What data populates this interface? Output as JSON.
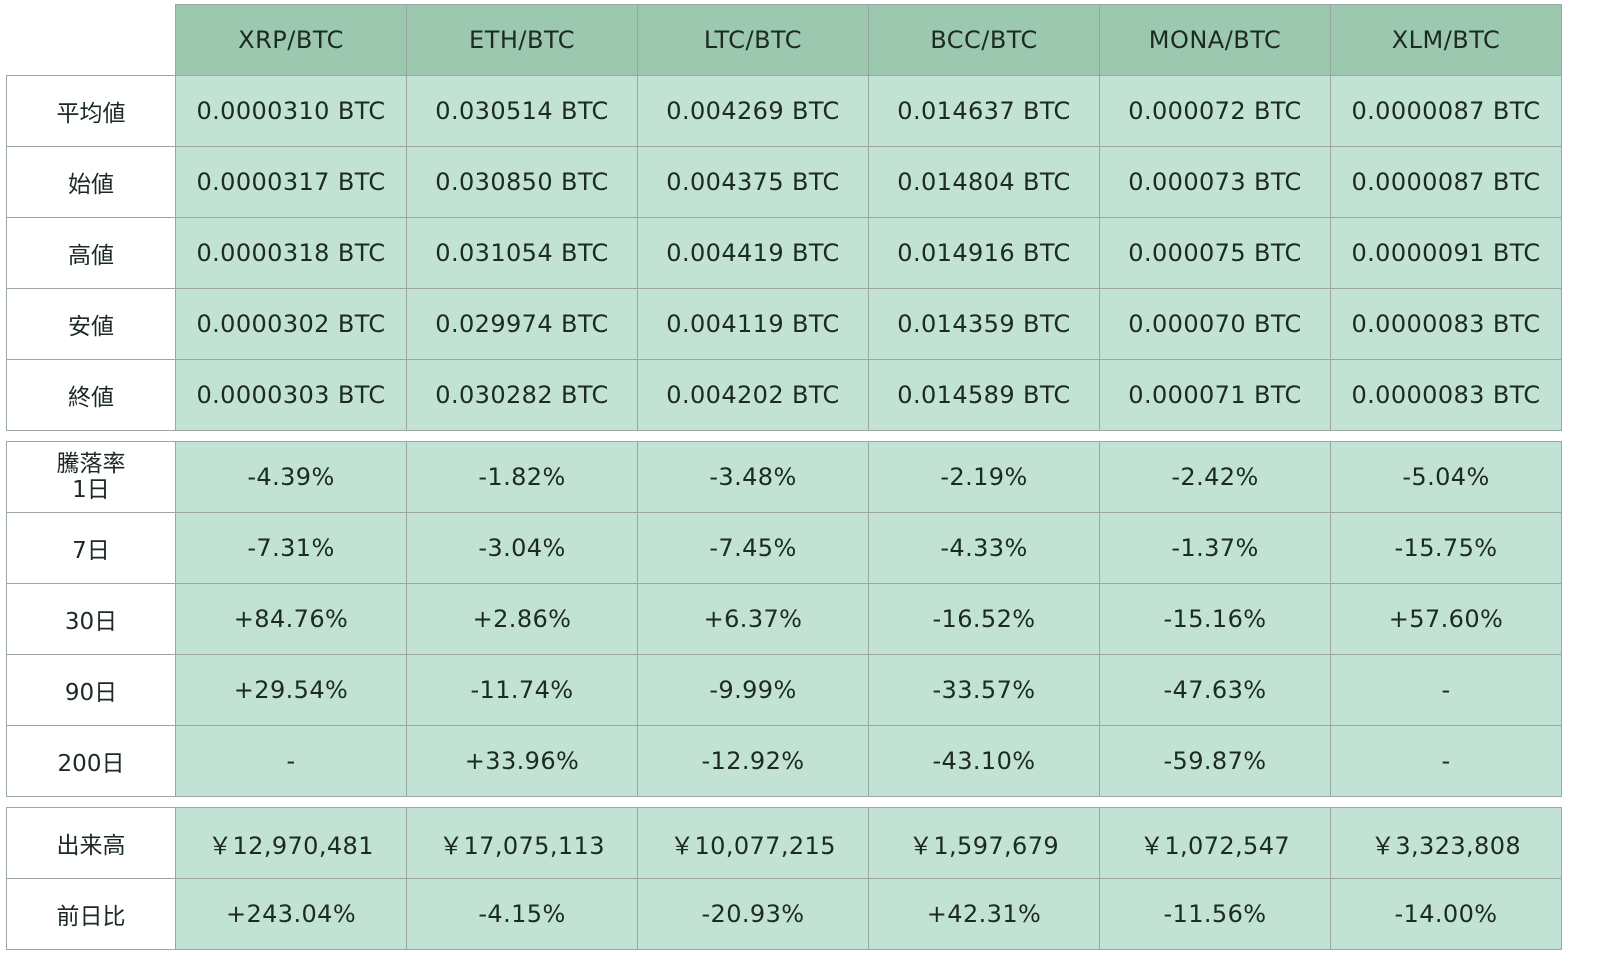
{
  "columns": [
    "XRP/BTC",
    "ETH/BTC",
    "LTC/BTC",
    "BCC/BTC",
    "MONA/BTC",
    "XLM/BTC"
  ],
  "ohlc": {
    "rows": [
      {
        "label": "平均値",
        "values": [
          "0.0000310 BTC",
          "0.030514 BTC",
          "0.004269 BTC",
          "0.014637 BTC",
          "0.000072 BTC",
          "0.0000087 BTC"
        ]
      },
      {
        "label": "始値",
        "values": [
          "0.0000317 BTC",
          "0.030850 BTC",
          "0.004375 BTC",
          "0.014804 BTC",
          "0.000073 BTC",
          "0.0000087 BTC"
        ]
      },
      {
        "label": "高値",
        "values": [
          "0.0000318 BTC",
          "0.031054 BTC",
          "0.004419 BTC",
          "0.014916 BTC",
          "0.000075 BTC",
          "0.0000091 BTC"
        ]
      },
      {
        "label": "安値",
        "values": [
          "0.0000302 BTC",
          "0.029974 BTC",
          "0.004119 BTC",
          "0.014359 BTC",
          "0.000070 BTC",
          "0.0000083 BTC"
        ]
      },
      {
        "label": "終値",
        "values": [
          "0.0000303 BTC",
          "0.030282 BTC",
          "0.004202 BTC",
          "0.014589 BTC",
          "0.000071 BTC",
          "0.0000083 BTC"
        ]
      }
    ]
  },
  "change": {
    "rows": [
      {
        "label": "騰落率",
        "label_line2": "1日",
        "values": [
          "-4.39%",
          "-1.82%",
          "-3.48%",
          "-2.19%",
          "-2.42%",
          "-5.04%"
        ]
      },
      {
        "label": "7日",
        "values": [
          "-7.31%",
          "-3.04%",
          "-7.45%",
          "-4.33%",
          "-1.37%",
          "-15.75%"
        ]
      },
      {
        "label": "30日",
        "values": [
          "+84.76%",
          "+2.86%",
          "+6.37%",
          "-16.52%",
          "-15.16%",
          "+57.60%"
        ]
      },
      {
        "label": "90日",
        "values": [
          "+29.54%",
          "-11.74%",
          "-9.99%",
          "-33.57%",
          "-47.63%",
          "-"
        ]
      },
      {
        "label": "200日",
        "values": [
          "-",
          "+33.96%",
          "-12.92%",
          "-43.10%",
          "-59.87%",
          "-"
        ]
      }
    ]
  },
  "volume": {
    "rows": [
      {
        "label": "出来高",
        "values": [
          "￥12,970,481",
          "￥17,075,113",
          "￥10,077,215",
          "￥1,597,679",
          "￥1,072,547",
          "￥3,323,808"
        ]
      },
      {
        "label": "前日比",
        "values": [
          "+243.04%",
          "-4.15%",
          "-20.93%",
          "+42.31%",
          "-11.56%",
          "-14.00%"
        ]
      }
    ]
  },
  "colors": {
    "header_fill": "#9bc8af",
    "cell_fill": "#c1e2d4",
    "border": "#9aa7a0",
    "label_fill": "#ffffff"
  }
}
